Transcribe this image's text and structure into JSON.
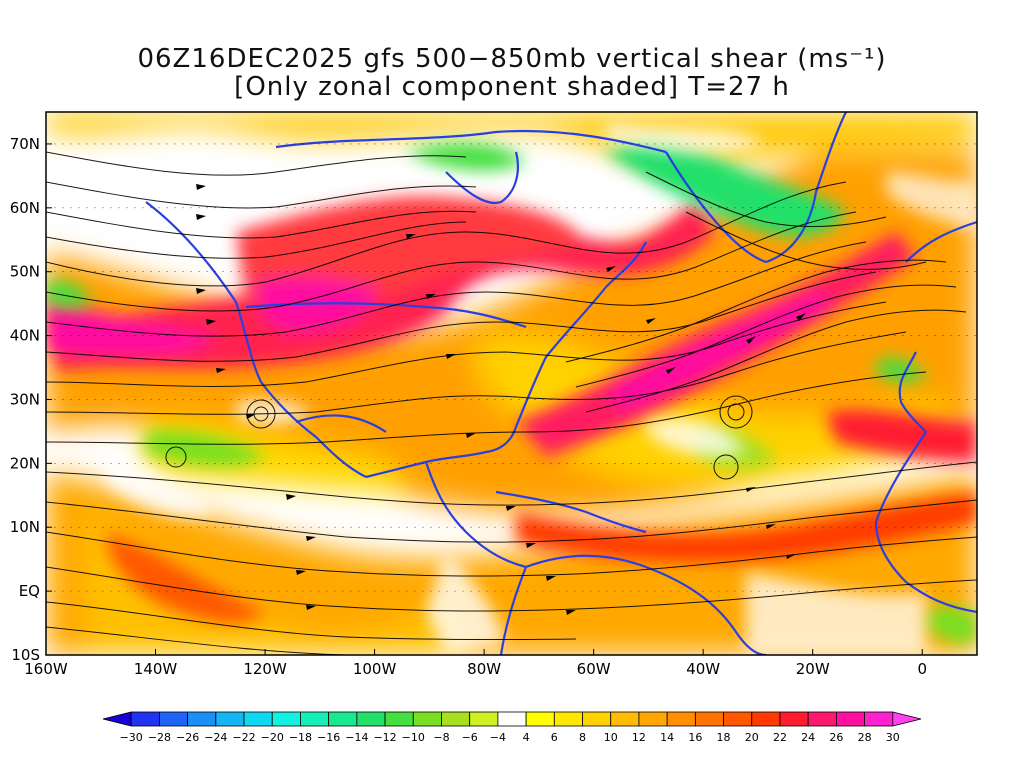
{
  "title": {
    "line1": "06Z16DEC2025 gfs 500−850mb vertical shear (ms⁻¹)",
    "line2": "[Only zonal component shaded] T=27 h"
  },
  "map": {
    "lon_range": [
      -160,
      10
    ],
    "lat_range": [
      -10,
      75
    ],
    "lon_ticks": [
      {
        "value": -160,
        "label": "160W"
      },
      {
        "value": -140,
        "label": "140W"
      },
      {
        "value": -120,
        "label": "120W"
      },
      {
        "value": -100,
        "label": "100W"
      },
      {
        "value": -80,
        "label": "80W"
      },
      {
        "value": -60,
        "label": "60W"
      },
      {
        "value": -40,
        "label": "40W"
      },
      {
        "value": -20,
        "label": "20W"
      },
      {
        "value": 0,
        "label": "0"
      }
    ],
    "lat_ticks": [
      {
        "value": -10,
        "label": "10S"
      },
      {
        "value": 0,
        "label": "EQ"
      },
      {
        "value": 10,
        "label": "10N"
      },
      {
        "value": 20,
        "label": "20N"
      },
      {
        "value": 30,
        "label": "30N"
      },
      {
        "value": 40,
        "label": "40N"
      },
      {
        "value": 50,
        "label": "50N"
      },
      {
        "value": 60,
        "label": "60N"
      },
      {
        "value": 70,
        "label": "70N"
      }
    ],
    "coastline_color": "#2b3fe0",
    "streamline_color": "#000000"
  },
  "colorbar": {
    "levels": [
      -30,
      -28,
      -26,
      -24,
      -22,
      -20,
      -18,
      -16,
      -14,
      -12,
      -10,
      -8,
      -6,
      -4,
      4,
      6,
      8,
      10,
      12,
      14,
      16,
      18,
      20,
      22,
      24,
      26,
      28,
      30
    ],
    "colors": [
      "#1a00d8",
      "#1f33f0",
      "#1e64f5",
      "#1a8ff5",
      "#15b4f2",
      "#10d8f0",
      "#12f2e0",
      "#14f0b8",
      "#18e890",
      "#20e06a",
      "#44e040",
      "#78e020",
      "#a8e020",
      "#d0f020",
      "#ffffff",
      "#ffff00",
      "#ffe800",
      "#ffd200",
      "#ffbc00",
      "#ffa600",
      "#ff8e00",
      "#ff7400",
      "#ff5800",
      "#ff3a00",
      "#ff1c30",
      "#ff1870",
      "#ff10a0",
      "#ff20d0",
      "#ff40f0"
    ]
  }
}
